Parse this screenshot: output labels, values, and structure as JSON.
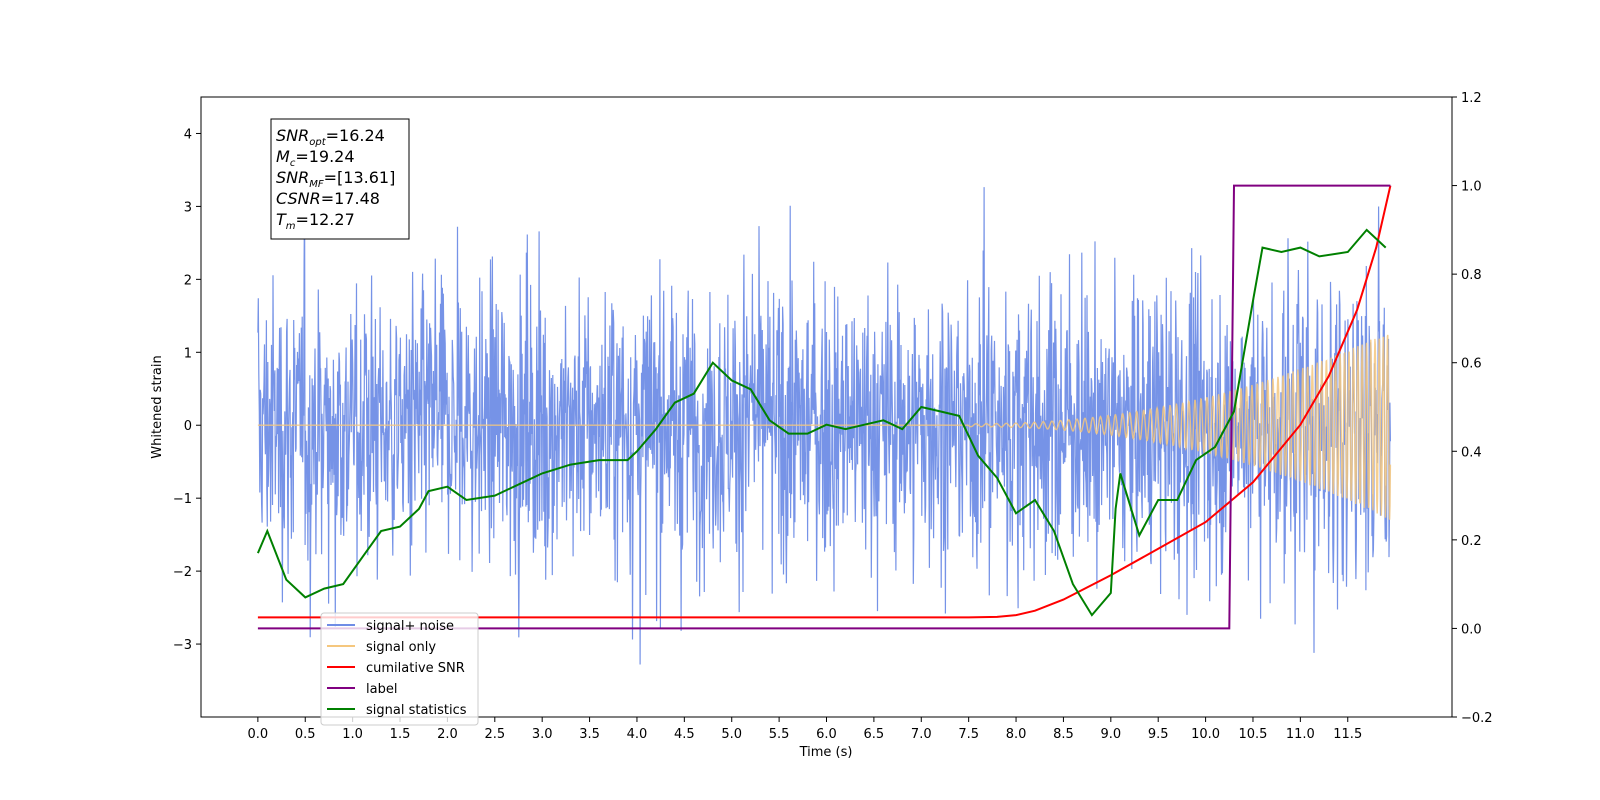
{
  "chart_data": {
    "type": "line",
    "xlabel": "Time (s)",
    "ylabel": "Whitened strain",
    "x_ticks": [
      "0.0",
      "0.5",
      "1.0",
      "1.5",
      "2.0",
      "2.5",
      "3.0",
      "3.5",
      "4.0",
      "4.5",
      "5.0",
      "5.5",
      "6.0",
      "6.5",
      "7.0",
      "7.5",
      "8.0",
      "8.5",
      "9.0",
      "9.5",
      "10.0",
      "10.5",
      "11.0",
      "11.5"
    ],
    "xlim": [
      -0.6,
      12.6
    ],
    "ylim_left": [
      -4.0,
      4.5
    ],
    "y_ticks_left": [
      "−3",
      "−2",
      "−1",
      "0",
      "1",
      "2",
      "3",
      "4"
    ],
    "ylim_right": [
      -0.2,
      1.2
    ],
    "y_ticks_right": [
      "−0.2",
      "0.0",
      "0.2",
      "0.4",
      "0.6",
      "0.8",
      "1.0",
      "1.2"
    ],
    "grid": false,
    "legend_position": "lower-left",
    "legend": [
      {
        "label": "signal+ noise",
        "color": "#6f8de6"
      },
      {
        "label": "signal only",
        "color": "#f5c77e"
      },
      {
        "label": "cumilative SNR",
        "color": "#ff0000"
      },
      {
        "label": "label",
        "color": "#800080"
      },
      {
        "label": "signal statistics",
        "color": "#008000"
      }
    ],
    "annotation": [
      {
        "name": "SNR",
        "sub": "opt",
        "value": "=16.24"
      },
      {
        "name": "M",
        "sub": "c",
        "value": "=19.24"
      },
      {
        "name": "SNR",
        "sub": "MF",
        "value": "=[13.61]"
      },
      {
        "name": "CSNR",
        "sub": "",
        "value": "=17.48"
      },
      {
        "name": "T",
        "sub": "m",
        "value": "=12.27"
      }
    ],
    "series": [
      {
        "name": "signal+ noise",
        "axis": "left",
        "color": "#6f8de6",
        "description": "noisy whitened strain, roughly within -3.6 to 4.1, t in 0.0–12.0"
      },
      {
        "name": "signal only",
        "axis": "left",
        "color": "#f5c77e",
        "description": "chirp, zero until ~7.5 s, amplitude growing to ~1.3 at 12.0 s"
      },
      {
        "name": "cumilative SNR",
        "axis": "right",
        "x": [
          0.0,
          7.5,
          7.8,
          8.0,
          8.2,
          8.5,
          9.0,
          9.5,
          10.0,
          10.5,
          11.0,
          11.3,
          11.6,
          11.8,
          11.95
        ],
        "y": [
          0.025,
          0.025,
          0.026,
          0.03,
          0.04,
          0.065,
          0.12,
          0.18,
          0.24,
          0.33,
          0.46,
          0.57,
          0.72,
          0.86,
          1.0
        ]
      },
      {
        "name": "label",
        "axis": "right",
        "x": [
          0.0,
          10.25,
          10.3,
          11.95
        ],
        "y": [
          0.0,
          0.0,
          1.0,
          1.0
        ]
      },
      {
        "name": "signal statistics",
        "axis": "right",
        "x": [
          0.0,
          0.1,
          0.3,
          0.5,
          0.7,
          0.9,
          1.1,
          1.3,
          1.5,
          1.7,
          1.8,
          2.0,
          2.2,
          2.5,
          2.8,
          3.0,
          3.3,
          3.6,
          3.9,
          4.0,
          4.2,
          4.4,
          4.6,
          4.8,
          5.0,
          5.2,
          5.4,
          5.6,
          5.8,
          6.0,
          6.2,
          6.4,
          6.6,
          6.8,
          7.0,
          7.2,
          7.4,
          7.6,
          7.8,
          8.0,
          8.2,
          8.4,
          8.6,
          8.8,
          9.0,
          9.05,
          9.1,
          9.3,
          9.5,
          9.7,
          9.9,
          10.1,
          10.3,
          10.5,
          10.6,
          10.8,
          11.0,
          11.2,
          11.5,
          11.7,
          11.9
        ],
        "y": [
          0.17,
          0.22,
          0.11,
          0.07,
          0.09,
          0.1,
          0.16,
          0.22,
          0.23,
          0.27,
          0.31,
          0.32,
          0.29,
          0.3,
          0.33,
          0.35,
          0.37,
          0.38,
          0.38,
          0.4,
          0.45,
          0.51,
          0.53,
          0.6,
          0.56,
          0.54,
          0.47,
          0.44,
          0.44,
          0.46,
          0.45,
          0.46,
          0.47,
          0.45,
          0.5,
          0.49,
          0.48,
          0.39,
          0.34,
          0.26,
          0.29,
          0.22,
          0.1,
          0.03,
          0.08,
          0.27,
          0.35,
          0.21,
          0.29,
          0.29,
          0.38,
          0.41,
          0.49,
          0.74,
          0.86,
          0.85,
          0.86,
          0.84,
          0.85,
          0.9,
          0.86
        ]
      }
    ]
  }
}
